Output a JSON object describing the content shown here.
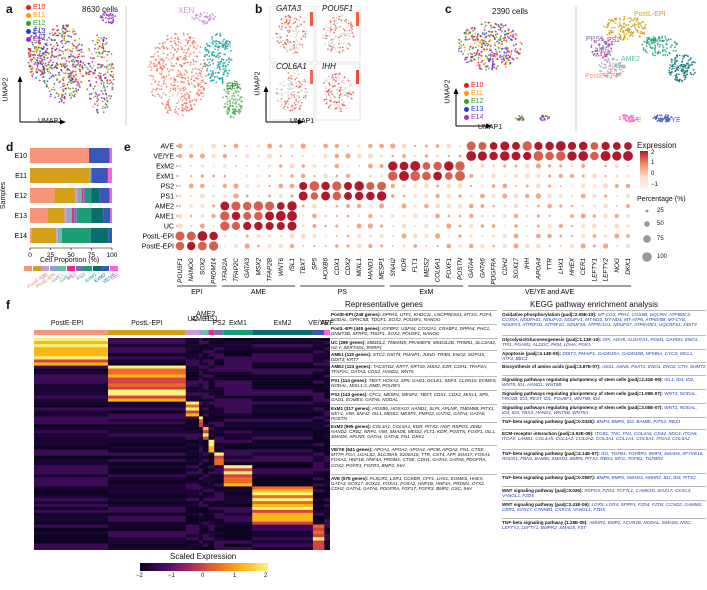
{
  "panels": {
    "a": {
      "label": "a",
      "cell_count": "8630 cells",
      "legend": [
        {
          "name": "E10",
          "color": "#e41a1c"
        },
        {
          "name": "E11",
          "color": "#ff9900"
        },
        {
          "name": "E12",
          "color": "#33a02c"
        },
        {
          "name": "E13",
          "color": "#1f3fcf"
        },
        {
          "name": "E14",
          "color": "#9b30d0"
        }
      ],
      "cluster_labels": [
        "XEN",
        "ExM",
        "TrB",
        "EPI"
      ],
      "xaxis": "UMAP1",
      "yaxis": "UMAP2"
    },
    "b": {
      "label": "b",
      "genes": [
        "GATA3",
        "POU5F1",
        "COL6A1",
        "IHH"
      ],
      "xaxis": "UMAP1",
      "yaxis": "UMAP2"
    },
    "c": {
      "label": "c",
      "cell_count": "2390 cells",
      "legend": [
        {
          "name": "E10",
          "color": "#e41a1c"
        },
        {
          "name": "E11",
          "color": "#ff9900"
        },
        {
          "name": "E12",
          "color": "#33a02c"
        },
        {
          "name": "E13",
          "color": "#1f3fcf"
        },
        {
          "name": "E14",
          "color": "#9b30d0"
        }
      ],
      "cluster_labels": [
        "PostL-EPI",
        "PPS1",
        "PS2",
        "ExM1",
        "AME1",
        "AME2",
        "UC",
        "PostE-EPI",
        "ExM2",
        "AVE",
        "VE/YE"
      ],
      "xaxis": "UMAP1",
      "yaxis": "UMAP2"
    },
    "d": {
      "label": "d",
      "xaxis": "Cell Proportion (%)",
      "yaxis": "Samples",
      "legend_labels": [
        "PostE-EPI",
        "PostL-EPI",
        "UC",
        "AME1",
        "AME2",
        "PS1",
        "PS2",
        "ExM1",
        "ExM2",
        "VE/YE",
        "AVE"
      ]
    },
    "e": {
      "label": "e",
      "color_legend_title": "Expression",
      "color_ticks": [
        "2",
        "1",
        "0",
        "−1"
      ],
      "size_legend_title": "Percentage (%)",
      "size_ticks": [
        "25",
        "50",
        "75",
        "100"
      ],
      "gene_groups": [
        "EPI",
        "AME",
        "PS",
        "ExM",
        "VE/YE and AVE"
      ],
      "genes": [
        "POU5F1",
        "NANOG",
        "SOX2",
        "PRDM14",
        "TFAP2A",
        "TFAP2C",
        "GATA3",
        "MSX2",
        "TFAP2B",
        "WNT6",
        "ISL1",
        "TBXT",
        "SP5",
        "HOXB6",
        "CDX1",
        "CDX2",
        "MIXL1",
        "HAND1",
        "MESP1",
        "SNAI2",
        "KDR",
        "FLT1",
        "MEIS2",
        "COL6A1",
        "FOXF1",
        "POSTN",
        "GATA4",
        "GATA6",
        "PDGFRA",
        "CDH2",
        "SOX17",
        "IHH",
        "APOA4",
        "TTR",
        "LHX1",
        "HHEX",
        "CER1",
        "LEFTY1",
        "LEFTY2",
        "NOG",
        "DKK1"
      ]
    },
    "f": {
      "label": "f",
      "clusters": [
        "PostE-EPI",
        "PostL-EPI",
        "UC",
        "AME1",
        "AME2",
        "PS1",
        "PS2",
        "ExM1",
        "ExM2",
        "VE/YE",
        "AVE"
      ],
      "scale_title": "Scaled Expression",
      "scale_ticks": [
        "−2",
        "−1",
        "0",
        "1",
        "2"
      ]
    }
  },
  "chart_data": [
    {
      "type": "bar",
      "title": "",
      "xlabel": "Cell Proportion (%)",
      "ylabel": "Samples",
      "categories": [
        "E10",
        "E11",
        "E12",
        "E13",
        "E14"
      ],
      "xlim": [
        0,
        100
      ],
      "xticks": [
        "0",
        "25",
        "50",
        "75",
        "100"
      ],
      "series": [
        {
          "name": "PostE-EPI",
          "color": "#f7957a",
          "values": [
            72,
            0,
            30,
            22,
            2
          ]
        },
        {
          "name": "PostL-EPI",
          "color": "#d4a017",
          "values": [
            0,
            73,
            25,
            20,
            30
          ]
        },
        {
          "name": "UC",
          "color": "#c79cd6",
          "values": [
            0,
            0,
            3,
            3,
            2
          ]
        },
        {
          "name": "AME1",
          "color": "#8da0cb",
          "values": [
            0,
            2,
            3,
            3,
            2
          ]
        },
        {
          "name": "AME2",
          "color": "#66c2a5",
          "values": [
            0,
            0,
            2,
            3,
            3
          ]
        },
        {
          "name": "PS1",
          "color": "#e7298a",
          "values": [
            0,
            0,
            2,
            3,
            0
          ]
        },
        {
          "name": "PS2",
          "color": "#7570b3",
          "values": [
            0,
            0,
            2,
            3,
            0
          ]
        },
        {
          "name": "ExM1",
          "color": "#1b9e77",
          "values": [
            0,
            0,
            8,
            18,
            35
          ]
        },
        {
          "name": "ExM2",
          "color": "#0b6e6e",
          "values": [
            0,
            0,
            10,
            15,
            22
          ]
        },
        {
          "name": "VE/YE",
          "color": "#3a56b8",
          "values": [
            25,
            20,
            12,
            8,
            4
          ]
        },
        {
          "name": "AVE",
          "color": "#ff66cc",
          "values": [
            3,
            5,
            3,
            2,
            0
          ]
        }
      ]
    }
  ],
  "rep_genes": {
    "title": "Representative genes",
    "entries": [
      {
        "head": "PostE-EPI (248 genes):",
        "body": "DPPA5, UTF1, KHDC1L, LNCPRESS1, MT1G, FGF4, NODAL, GPRC5B, TDGF1, SOX2, POU5F1, NANOG"
      },
      {
        "head": "PostL-EPI (445 genes):",
        "body": "IGFBP2, USP44, COX2A1, CRABP1, DPPA4, PHC1, DNMT3B, SFRP2, TDGF1, SOX2, POU5F1, NANOG"
      },
      {
        "head": "UC (289 genes):",
        "body": "MB3DL2, TMEM45, PRAMEF8, MSD3L2B, TRIM51, SLC3A42, H2.Y, SERTAD1, RSRP1"
      },
      {
        "head": "AME1 (115 genes):",
        "body": "STC2, DIO74, PMAIP1, JUND, TRIB3, ENO2, SGPI15, DDIT3, KRT7"
      },
      {
        "head": "AME2 (123 genes):",
        "body": "TACSTD2, KRT7, KRT19, MSX2, EZR, CDH1, TFAP2A, TFAP2C, GATA3, CDX2, HAND1, WNT6"
      },
      {
        "head": "PS1 (114 genes):",
        "body": "TBXT, HOXA1, SP5, GAD1, DCLK1, SDF3, CLDN10, EOMES, NODAL, MIXL1-2, DMD, POU5F1"
      },
      {
        "head": "PS2 (143 genes):",
        "body": "CFC1, MESP1, MESP2, TBXT, CDX1, CDX2, MIXL1, SP5, GAD1, EOMES, GATA6, NODAL"
      },
      {
        "head": "ExM1 (317 genes):",
        "body": "HOXB6, HOXA10, HAND1, SLPI, APLNR, TMEM88, PITX1, NEY1, VIM, SNAI2, ISL1, MEIS2, MESP1, PMP22, GATA2, GATA4, GATA6, POSTN"
      },
      {
        "head": "ExM2 (995 genes):",
        "body": "COL3A1, COL5A1, KDR, PITX2, HGF, RSPO3, ZEB2, HAND2, CRB2, NRP1, VIM, SMAD6, MEIS2, FLT1, KDR, POSTN, FOXF1, ISL1, SMAD6, APLNR, GATA4, GATA6, FN1, DKK1"
      },
      {
        "head": "VE/YE (641 genes):",
        "body": "APOA1, APOA2, APOA4, APOB, APOA2, FN1, CTSE, MTTP, FGA, LGALS2, SLC39A5, S100A16, TTR, CST4, AFP, SOX17, FOXA1, FOXA2, HNF1B, HNF4A, PRDM1, CTSE, CDH1, GATA4, GATA6, PDGFRA, COX2, PGFR1, FGFR3, BMP2, IHH"
      },
      {
        "head": "AVE (575 genes):",
        "body": "PLSCR2, LSR1, CCKBR, CFF1, LHX1, EOMES, HHEX, GATA3, SOX17, SOX21, FOXA1, FOXA2, HNF1B, HNF4A, PRDM1, OTX2, CDH2, GATA4, GATA6, PDGFRA, FGF17, FGFR3, BMP2, GSC, IHH"
      }
    ]
  },
  "kegg": {
    "title": "KEGG pathway enrichment analysis",
    "entries": [
      {
        "head": "Oxidative phosphorylation (padj=2.05E-19):",
        "body": "MT-CO3, PPA1, COX6B, UQCRH, ATP5MC3, COX5A, NDUFA01, NDUFV2, NDUFV1, MT-ND3, MT-ND4, MT-ATP6, ATP6V0B, MT-CYB, NDUFA3, ATP5F1D, ATP5F1C, NDUFS5, ATP5V1G1, NDUFS7, ATP6V0E1, UQCRFS1, DDIT3"
      },
      {
        "head": "Glycolysis/Gluconeogenesis (padj=1.13E-10):",
        "body": "GPI, ADH5, ALDH7A1, PGM1, GAPDH, ENO1, TPI1, PGAM1, ALDOC, PKM, LDHA, PGK1"
      },
      {
        "head": "Apoptosis (padj=4.14E-05):",
        "body": "DDIT3, PMAIP1, GADD45A, GADD45B, NFKBIA, CYCS, MCL1, ATF4, BBC3"
      },
      {
        "head": "Biosynthesis of amino acids (padj=3.87E-07):",
        "body": "ASS1, ASNS, PSAT1, ENO1, ENO2, CTH, SHMT2"
      },
      {
        "head": "Signaling pathways regulating pluripotency of stem cells (padj=2.41E-05):",
        "body": "ISL1, ID4, ID2, WNT5, ID1, HAND1, WNT5B"
      },
      {
        "head": "Signaling pathways regulating pluripotency of stem cells (padj=1.06E-07):",
        "body": "WNT3, NODAL, FRO2B, ID3, REST, ID1, POU5F1, WNT5B, ID4"
      },
      {
        "head": "Signaling pathways regulating pluripotency of stem cells (padj=3.05E-07):",
        "body": "WNT3, NODAL, ID4, ID3, TBX3, HAND1, WNT5B, WNT5A"
      },
      {
        "head": "TGF-beta signaling pathway (padj=0.0325):",
        "body": "BMP4, BMP2, ID2, BAMBI, PITX2, RBX1"
      },
      {
        "head": "ECM-receptor interaction (padj=4.62E-09):",
        "body": "ITGB1, TNC, FN1, COL4A6, CD44, SDC4, ITGA5, ITGAV, LAMB1, COL4A5, COL1A2, COL4A2, COL4A1, COL1A1, COL5A1, ITGA3, COL5A2"
      },
      {
        "head": "TGF-beta signaling pathway (padj=4.14E-07):",
        "body": "ID1, TGFB1, TGFBR1, BMP4, SMAD6, ZFYVE16, ROCK1, FBN1, BAMBI, SMAD3, BMP5, PITX2, RBX1, MYC, TGFB2, TGFBR2"
      },
      {
        "head": "TGF-beta signaling pathway (padj=0.0087):",
        "body": "BMP6, BMP2, SMAD3, AMHR2, ID2, ID3, PITX2"
      },
      {
        "head": "WNT signaling pathway (padj=0.026):",
        "body": "RSPO3, FZD4, TCF7L1, CAMK2D, SOX17, CXXC4, VANGL1, FZD5"
      },
      {
        "head": "WNT signaling pathway (padj=3.41E-06):",
        "body": "LGR5, LGR4, SFRP1, FZD4, FZD5, CCND2, GAMM1, CER1, SOX17, CTNNB1, CXXC4, VANGL1, FZD5"
      },
      {
        "head": "TGF-beta signaling pathway (1.28E-05):",
        "body": "AMHR2, BMP2, ACVR2B, NODAL, SMAD6, NOG, LEFTY2, LEFTY1, BMPR2, SMAD5, FST"
      }
    ]
  }
}
